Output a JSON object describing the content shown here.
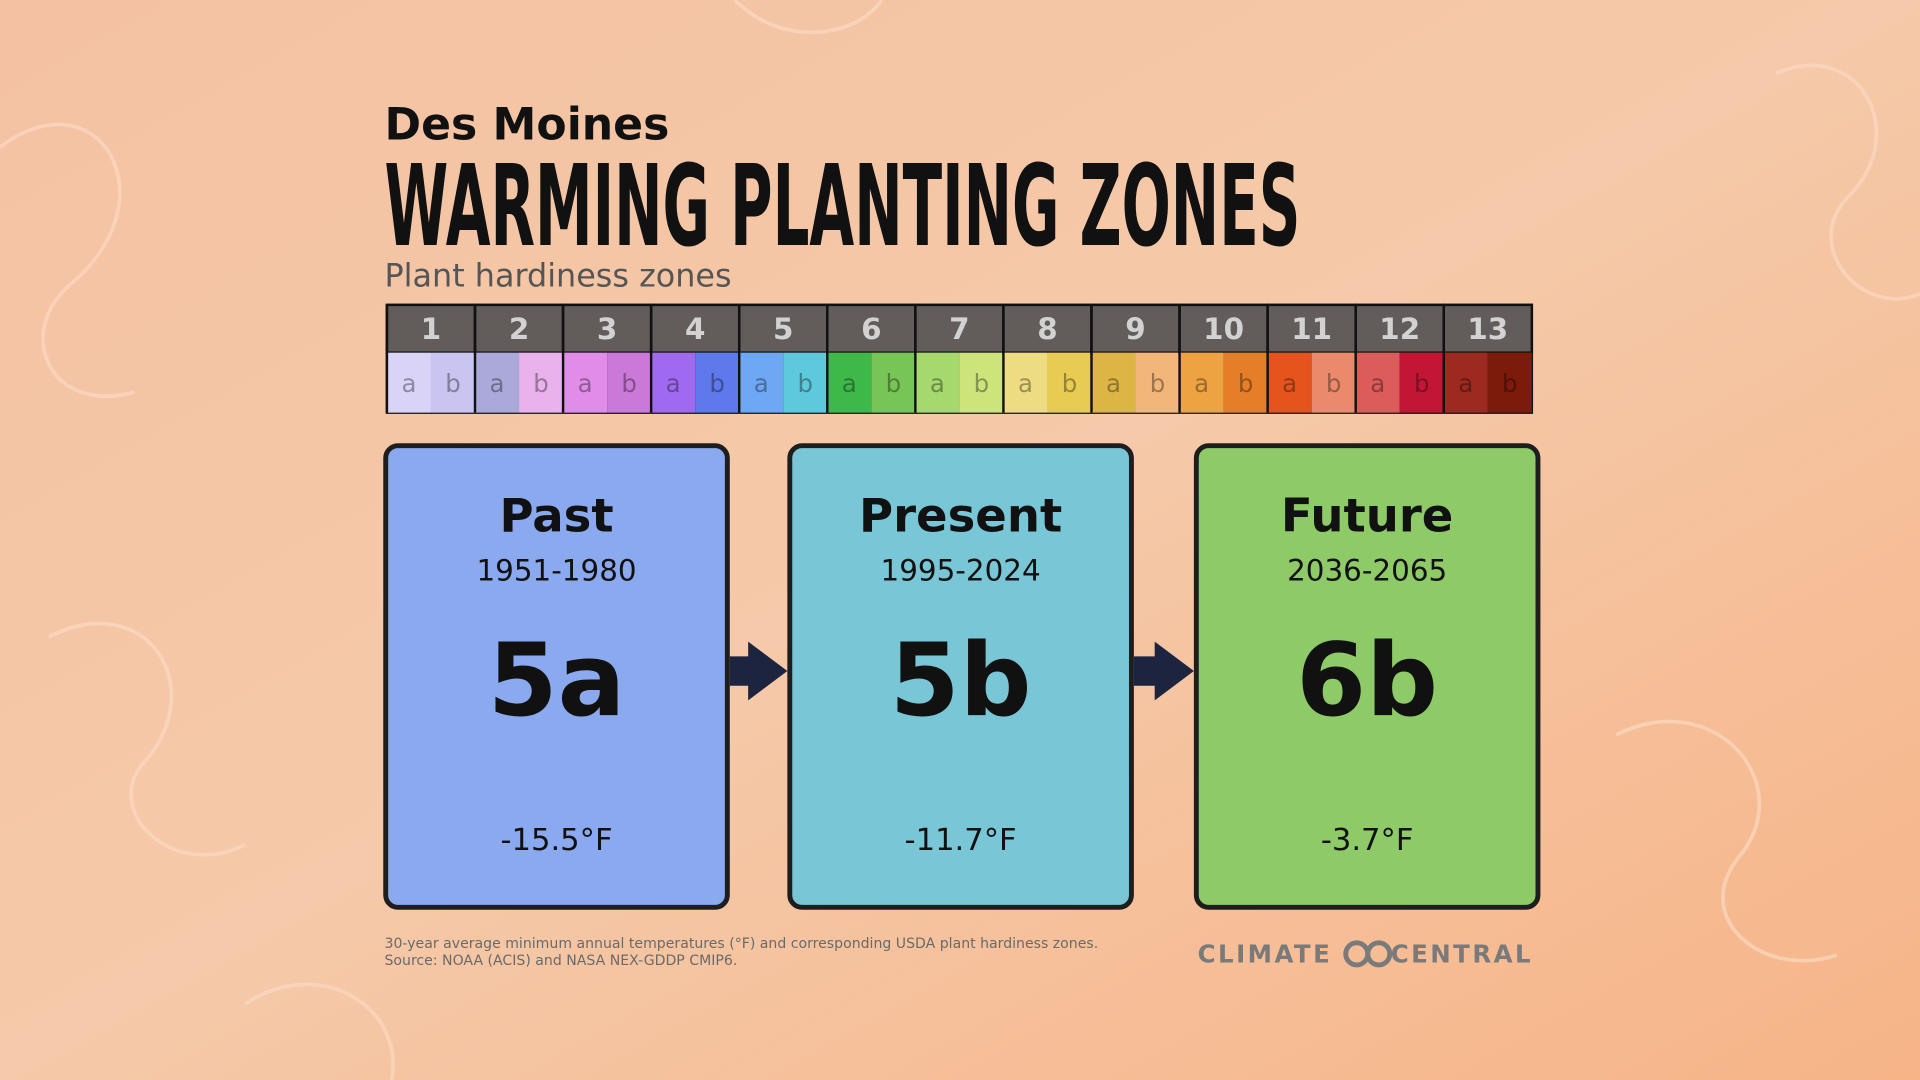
{
  "header": {
    "location": "Des Moines",
    "title": "WARMING PLANTING ZONES",
    "subtitle": "Plant hardiness zones"
  },
  "zones": [
    {
      "label": "1",
      "a": "a",
      "b": "b",
      "colors": [
        "#d9d3f7",
        "#c9c4f0"
      ]
    },
    {
      "label": "2",
      "a": "a",
      "b": "b",
      "colors": [
        "#aaa9d9",
        "#e9b2ec"
      ]
    },
    {
      "label": "3",
      "a": "a",
      "b": "b",
      "colors": [
        "#e08ce8",
        "#cb79d8"
      ]
    },
    {
      "label": "4",
      "a": "a",
      "b": "b",
      "colors": [
        "#9f6af0",
        "#5e79ec"
      ]
    },
    {
      "label": "5",
      "a": "a",
      "b": "b",
      "colors": [
        "#6ea7f3",
        "#5ec8dc"
      ]
    },
    {
      "label": "6",
      "a": "a",
      "b": "b",
      "colors": [
        "#3fb84a",
        "#78c557"
      ]
    },
    {
      "label": "7",
      "a": "a",
      "b": "b",
      "colors": [
        "#a5d86d",
        "#cde47a"
      ]
    },
    {
      "label": "8",
      "a": "a",
      "b": "b",
      "colors": [
        "#eedc83",
        "#e8cb53"
      ]
    },
    {
      "label": "9",
      "a": "a",
      "b": "b",
      "colors": [
        "#dcb545",
        "#f2b679"
      ]
    },
    {
      "label": "10",
      "a": "a",
      "b": "b",
      "colors": [
        "#eea343",
        "#e57e29"
      ]
    },
    {
      "label": "11",
      "a": "a",
      "b": "b",
      "colors": [
        "#e5541d",
        "#ea8a6a"
      ]
    },
    {
      "label": "12",
      "a": "a",
      "b": "b",
      "colors": [
        "#dc5b5b",
        "#c21634"
      ]
    },
    {
      "label": "13",
      "a": "a",
      "b": "b",
      "colors": [
        "#9c2a20",
        "#7c1a0b"
      ]
    }
  ],
  "cards": [
    {
      "period": "Past",
      "years": "1951-1980",
      "zone": "5a",
      "temperature": "-15.5°F",
      "color": "#8aa9ef"
    },
    {
      "period": "Present",
      "years": "1995-2024",
      "zone": "5b",
      "temperature": "-11.7°F",
      "color": "#79c6d6"
    },
    {
      "period": "Future",
      "years": "2036-2065",
      "zone": "6b",
      "temperature": "-3.7°F",
      "color": "#8ecb68"
    }
  ],
  "footer": {
    "note": "30-year average minimum annual temperatures (°F) and corresponding USDA plant hardiness zones.",
    "source": "Source: NOAA (ACIS) and NASA NEX-GDDP CMIP6."
  },
  "logo": {
    "left": "CLIMATE",
    "right": "CENTRAL"
  }
}
